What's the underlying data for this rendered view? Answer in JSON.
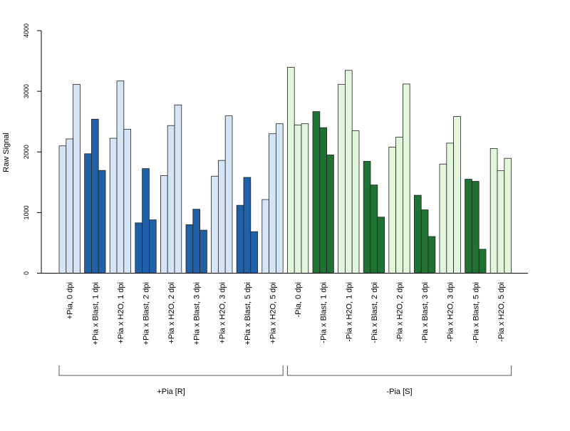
{
  "chart_data": {
    "type": "bar",
    "title": "",
    "xlabel": "",
    "ylabel": "Raw Signal",
    "ylim": [
      0,
      4000
    ],
    "yticks": [
      0,
      1000,
      2000,
      3000,
      4000
    ],
    "grid": false,
    "legend": "none",
    "categories": [
      "+Pia, 0 dpi",
      "+Pia x Blast, 1 dpi",
      "+Pia x H2O, 1 dpi",
      "+Pia x Blast, 2 dpi",
      "+Pia x H2O, 2 dpi",
      "+Pia x Blast, 3 dpi",
      "+Pia x H2O, 3 dpi",
      "+Pia x Blast, 5 dpi",
      "+Pia x H2O, 5 dpi",
      "-Pia, 0 dpi",
      "-Pia x Blast, 1 dpi",
      "-Pia x H2O, 1 dpi",
      "-Pia x Blast, 2 dpi",
      "-Pia x H2O, 2 dpi",
      "-Pia x Blast, 3 dpi",
      "-Pia x H2O, 3 dpi",
      "-Pia x Blast, 5 dpi",
      "-Pia x H2O, 5 dpi"
    ],
    "replicate_values": [
      [
        2100,
        2215,
        3115
      ],
      [
        1970,
        2540,
        1695
      ],
      [
        2225,
        3170,
        2375
      ],
      [
        830,
        1725,
        880
      ],
      [
        1610,
        2435,
        2775
      ],
      [
        800,
        1055,
        710
      ],
      [
        1600,
        1860,
        2595
      ],
      [
        1120,
        1580,
        685
      ],
      [
        1215,
        2300,
        2465
      ],
      [
        3395,
        2445,
        2465
      ],
      [
        2665,
        2400,
        1950
      ],
      [
        3115,
        3345,
        2350
      ],
      [
        1845,
        1455,
        925
      ],
      [
        2080,
        2245,
        3120
      ],
      [
        1285,
        1045,
        605
      ],
      [
        1800,
        2145,
        2585
      ],
      [
        1550,
        1515,
        395
      ],
      [
        2055,
        1690,
        1895
      ]
    ],
    "colors": {
      "plus_h2o_or_baseline": "#d6e5f5",
      "plus_blast": "#2060a8",
      "minus_h2o_or_baseline": "#e2f6dc",
      "minus_blast": "#1e7232",
      "outline": "#222222"
    },
    "groups": [
      {
        "label": "+Pia [R]",
        "first": 0,
        "last": 8
      },
      {
        "label": "-Pia [S]",
        "first": 9,
        "last": 17
      }
    ]
  }
}
